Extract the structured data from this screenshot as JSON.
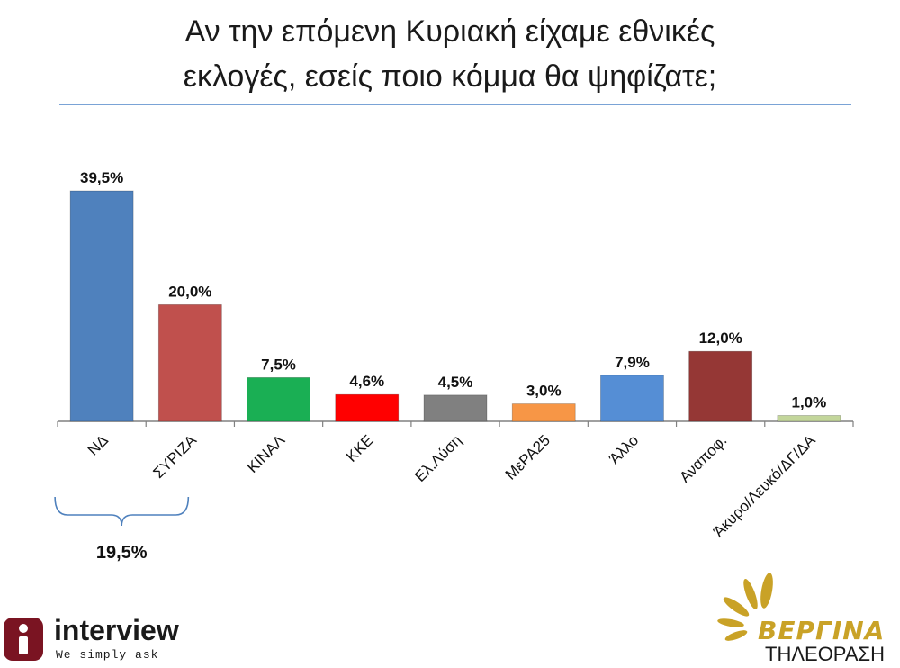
{
  "chart_data": {
    "type": "bar",
    "title_lines": [
      "Αν την επόμενη Κυριακή είχαμε εθνικές",
      "εκλογές, εσείς ποιο κόμμα θα ψηφίζατε;"
    ],
    "categories": [
      "ΝΔ",
      "ΣΥΡΙΖΑ",
      "ΚΙΝΑΛ",
      "ΚΚΕ",
      "Ελ.Λύση",
      "ΜεΡΑ25",
      "Άλλο",
      "Αναποφ.",
      "Άκυρο/Λευκό/ΔΓ/ΔΑ"
    ],
    "values": [
      39.5,
      20.0,
      7.5,
      4.6,
      4.5,
      3.0,
      7.9,
      12.0,
      1.0
    ],
    "value_labels": [
      "39,5%",
      "20,0%",
      "7,5%",
      "4,6%",
      "4,5%",
      "3,0%",
      "7,9%",
      "12,0%",
      "1,0%"
    ],
    "colors": [
      "#4f81bd",
      "#c0504d",
      "#1aaf54",
      "#ff0000",
      "#808080",
      "#f79646",
      "#558ed5",
      "#953735",
      "#c3d69b"
    ],
    "ylim": [
      0,
      40
    ],
    "grid": false,
    "legend": "none",
    "annotation": {
      "label": "19,5%",
      "from_category": "ΝΔ",
      "to_category": "ΣΥΡΙΖΑ",
      "bracket_color": "#4f81bd"
    }
  },
  "logos": {
    "interview": {
      "brand": "interview",
      "tagline": "We simply ask",
      "color": "#7a1422"
    },
    "vergina": {
      "brand": "ΒΕΡΓΙΝΑ",
      "sub": "ΤΗΛΕΟΡΑΣΗ",
      "color": "#c9a227"
    }
  }
}
